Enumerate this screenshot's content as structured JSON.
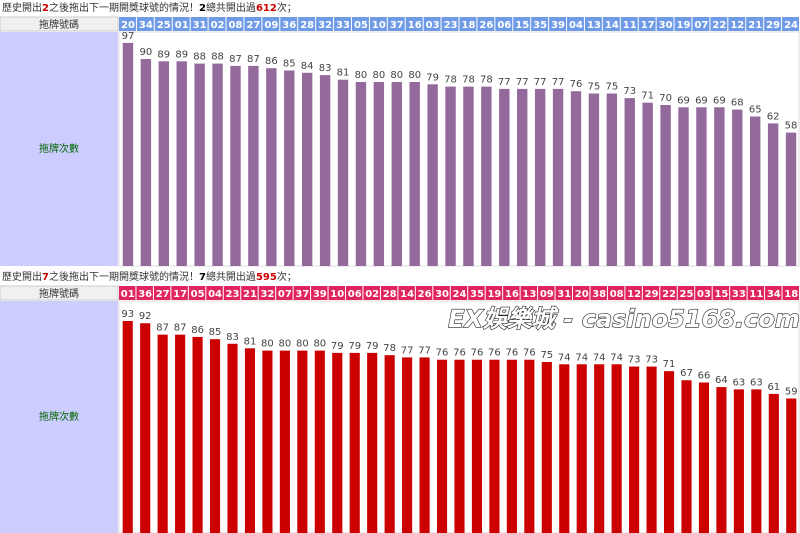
{
  "watermark": "EX娛樂城 - casino5168.com",
  "chart_data": [
    {
      "type": "bar",
      "title_parts": [
        "歷史開出",
        "2",
        "之後拖出下一期開獎球號的情況！",
        "2",
        "總共開出過",
        "612",
        "次；"
      ],
      "category_label": "拖牌號碼",
      "value_label": "拖牌次數",
      "categories": [
        "20",
        "34",
        "25",
        "01",
        "31",
        "02",
        "08",
        "27",
        "09",
        "36",
        "28",
        "32",
        "33",
        "05",
        "10",
        "37",
        "16",
        "03",
        "23",
        "18",
        "26",
        "06",
        "15",
        "35",
        "39",
        "04",
        "13",
        "14",
        "11",
        "17",
        "30",
        "19",
        "07",
        "22",
        "12",
        "21",
        "29",
        "24"
      ],
      "values": [
        97,
        90,
        89,
        89,
        88,
        88,
        87,
        87,
        86,
        85,
        84,
        83,
        81,
        80,
        80,
        80,
        80,
        79,
        78,
        78,
        78,
        77,
        77,
        77,
        77,
        76,
        75,
        75,
        73,
        71,
        70,
        69,
        69,
        69,
        68,
        65,
        62,
        58
      ],
      "color": "#946a9c",
      "header_color": "#6f9be6",
      "ylim": [
        0,
        100
      ]
    },
    {
      "type": "bar",
      "title_parts": [
        "歷史開出",
        "7",
        "之後拖出下一期開獎球號的情況！",
        "7",
        "總共開出過",
        "595",
        "次；"
      ],
      "category_label": "拖牌號碼",
      "value_label": "拖牌次數",
      "categories": [
        "01",
        "36",
        "27",
        "17",
        "05",
        "04",
        "23",
        "21",
        "32",
        "07",
        "37",
        "39",
        "10",
        "06",
        "02",
        "28",
        "14",
        "26",
        "30",
        "24",
        "35",
        "19",
        "16",
        "13",
        "09",
        "31",
        "20",
        "38",
        "08",
        "12",
        "29",
        "22",
        "25",
        "03",
        "15",
        "33",
        "11",
        "34",
        "18"
      ],
      "values": [
        93,
        92,
        87,
        87,
        86,
        85,
        83,
        81,
        80,
        80,
        80,
        80,
        79,
        79,
        79,
        78,
        77,
        77,
        76,
        76,
        76,
        76,
        76,
        76,
        75,
        74,
        74,
        74,
        74,
        73,
        73,
        71,
        67,
        66,
        64,
        63,
        63,
        61,
        59
      ],
      "color": "#cc0000",
      "header_color": "#e0245e",
      "ylim": [
        0,
        100
      ]
    }
  ]
}
